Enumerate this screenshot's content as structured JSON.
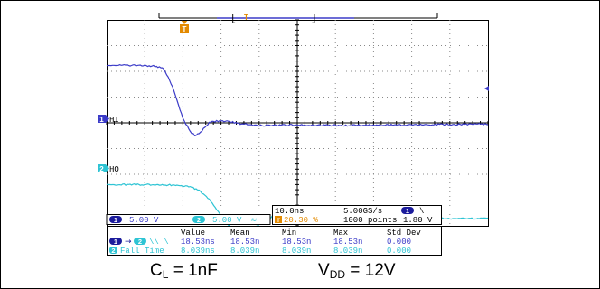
{
  "chart_data": {
    "type": "line",
    "title": "",
    "xlabel": "",
    "ylabel": "",
    "grid": true,
    "x_unit": "ns",
    "x_range": [
      -20,
      80
    ],
    "y_range_div": [
      -4,
      4
    ],
    "series": [
      {
        "name": "HI",
        "color": "#3b3bc8",
        "scale": "5.00 V",
        "offset_div": -0.1,
        "x": [
          -20,
          -10,
          -7,
          -5,
          -3,
          -2,
          -1,
          0,
          1,
          2,
          3,
          4,
          5,
          6,
          7,
          8,
          10,
          12,
          15,
          20,
          30,
          40,
          60,
          80
        ],
        "y": [
          2.35,
          2.32,
          2.3,
          2.2,
          1.6,
          1.2,
          0.7,
          0.3,
          0.0,
          -0.25,
          -0.38,
          -0.35,
          -0.2,
          -0.02,
          0.1,
          0.15,
          0.18,
          0.15,
          0.07,
          0.0,
          0.02,
          0.0,
          0.02,
          0.05
        ]
      },
      {
        "name": "HO",
        "color": "#2ec4d4",
        "scale": "5.00 V",
        "offset_div": -3.0,
        "x": [
          -20,
          -10,
          -3,
          0,
          2,
          4,
          7,
          10,
          13,
          15,
          17,
          19,
          21,
          24,
          27,
          30,
          35,
          40,
          50,
          60,
          70,
          80
        ],
        "y": [
          0.6,
          0.6,
          0.58,
          0.55,
          0.5,
          0.4,
          0.0,
          -0.6,
          -1.15,
          -1.35,
          -1.32,
          -1.05,
          -0.8,
          -0.6,
          -0.62,
          -0.72,
          -0.82,
          -0.78,
          -0.72,
          -0.74,
          -0.72,
          -0.72
        ]
      }
    ]
  },
  "channels": [
    {
      "number": "1",
      "label": "HI",
      "scale": "5.00 V"
    },
    {
      "number": "2",
      "label": "HO",
      "scale": "5.00 V"
    }
  ],
  "trigger_marker": "T",
  "bandwidth_symbol": "≈",
  "timebase": {
    "time_per_div": "10.0ns",
    "sample_rate": "5.00GS/s",
    "trigger_channel": "1",
    "trigger_slope": "\\",
    "trigger_position": "20.30 %",
    "record_length": "1000 points",
    "trigger_level": "1.80 V"
  },
  "measurements": {
    "headers": [
      "Value",
      "Mean",
      "Min",
      "Max",
      "Std Dev"
    ],
    "rows": [
      {
        "label": "1→2 \\ \\",
        "values": [
          "18.53ns",
          "18.53n",
          "18.53n",
          "18.53n",
          "0.000"
        ]
      },
      {
        "label": "2 Fall Time",
        "values": [
          "8.039ns",
          "8.039n",
          "8.039n",
          "8.039n",
          "0.000"
        ]
      }
    ]
  },
  "captions": {
    "load": {
      "main": "C",
      "sub": "L",
      "rest": " = 1nF"
    },
    "supply": {
      "main": "V",
      "sub": "DD",
      "rest": " = 12V"
    }
  }
}
